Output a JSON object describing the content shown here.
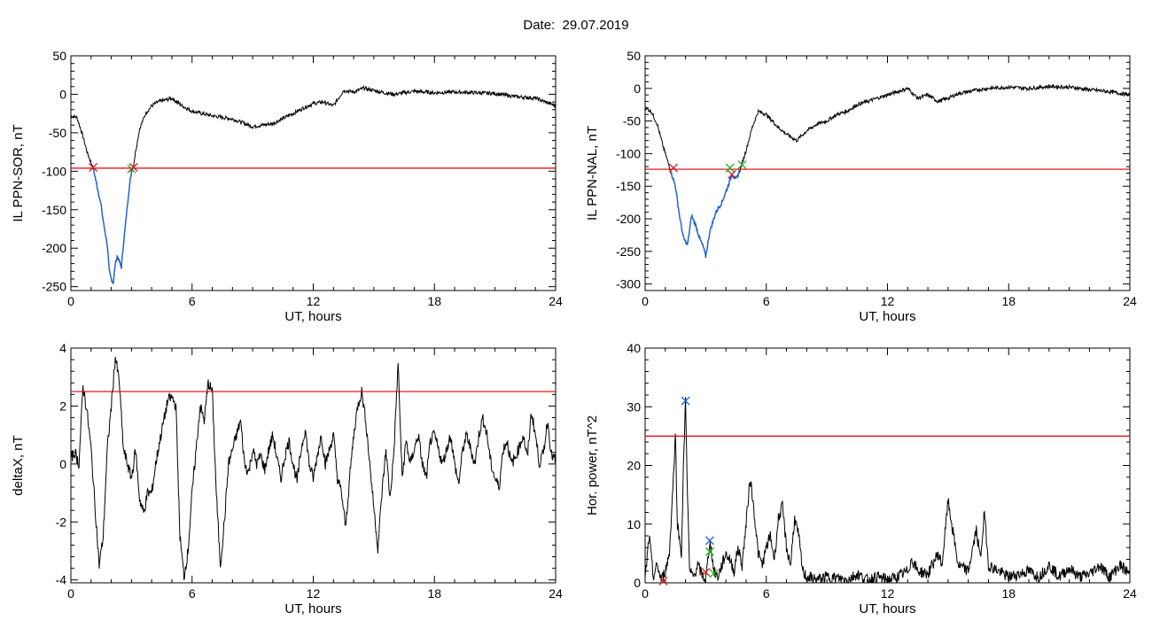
{
  "header": {
    "date_text": "Date:  29.07.2019"
  },
  "colors": {
    "trace": "#000000",
    "threshold": "#e00000",
    "highlight": "#1a5fd6",
    "marker_red": "#d02020",
    "marker_green": "#20b020",
    "marker_blue": "#1a5fd6"
  },
  "chart_data": [
    {
      "id": "panel-ppn-sor",
      "type": "line",
      "xlabel": "UT, hours",
      "ylabel": "IL PPN-SOR, nT",
      "xlim": [
        0,
        24
      ],
      "ylim": [
        -255,
        50
      ],
      "xticks": [
        0,
        6,
        12,
        18,
        24
      ],
      "yticks": [
        50,
        0,
        -50,
        -100,
        -150,
        -200,
        -250
      ],
      "threshold": -96,
      "series": [
        {
          "role": "trace",
          "x": [
            0,
            0.3,
            0.6,
            0.8,
            1.1,
            1.3,
            1.5,
            1.6,
            1.8,
            1.9,
            2.0,
            2.1,
            2.2,
            2.3,
            2.5,
            2.6,
            2.7,
            2.85,
            3.0,
            3.1,
            3.2,
            3.4,
            3.7,
            4.0,
            4.3,
            4.6,
            5.0,
            5.5,
            6.0,
            7.0,
            8.0,
            9.0,
            10.0,
            11.0,
            11.5,
            12.0,
            12.5,
            13.0,
            13.5,
            14.0,
            14.5,
            15.0,
            15.5,
            16.0,
            16.5,
            17.0,
            18.0,
            19.0,
            20.0,
            21.0,
            22.0,
            23.0,
            23.5,
            24.0
          ],
          "y": [
            -28,
            -30,
            -55,
            -75,
            -96,
            -120,
            -145,
            -165,
            -195,
            -230,
            -240,
            -245,
            -220,
            -210,
            -225,
            -195,
            -170,
            -130,
            -100,
            -92,
            -75,
            -45,
            -25,
            -15,
            -10,
            -8,
            -5,
            -15,
            -22,
            -28,
            -32,
            -42,
            -38,
            -25,
            -18,
            -12,
            -10,
            -15,
            5,
            3,
            8,
            5,
            2,
            0,
            2,
            4,
            2,
            3,
            2,
            1,
            -3,
            -5,
            -10,
            -15
          ]
        },
        {
          "role": "highlight",
          "x_from": 1.1,
          "x_to": 3.1
        }
      ],
      "markers": [
        {
          "x": 1.1,
          "y": -95,
          "color": "red"
        },
        {
          "x": 3.0,
          "y": -97,
          "color": "green"
        },
        {
          "x": 3.1,
          "y": -95,
          "color": "red"
        }
      ]
    },
    {
      "id": "panel-ppn-nal",
      "type": "line",
      "xlabel": "UT, hours",
      "ylabel": "IL PPN-NAL, nT",
      "xlim": [
        0,
        24
      ],
      "ylim": [
        -310,
        50
      ],
      "xticks": [
        0,
        6,
        12,
        18,
        24
      ],
      "yticks": [
        50,
        0,
        -50,
        -100,
        -150,
        -200,
        -250,
        -300
      ],
      "threshold": -124,
      "series": [
        {
          "role": "trace",
          "x": [
            0,
            0.3,
            0.6,
            0.9,
            1.2,
            1.5,
            1.7,
            1.9,
            2.1,
            2.3,
            2.5,
            2.7,
            2.9,
            3.0,
            3.2,
            3.5,
            3.8,
            4.1,
            4.3,
            4.5,
            4.7,
            5.0,
            5.3,
            5.6,
            6.0,
            6.3,
            6.6,
            7.0,
            7.5,
            8.0,
            8.5,
            9.0,
            9.5,
            10.0,
            10.5,
            11.0,
            11.5,
            12.0,
            12.5,
            13.0,
            13.5,
            14.0,
            14.5,
            15.0,
            15.5,
            16.0,
            16.5,
            17.0,
            18.0,
            19.0,
            20.0,
            21.0,
            22.0,
            23.0,
            24.0
          ],
          "y": [
            -30,
            -35,
            -55,
            -90,
            -120,
            -150,
            -195,
            -230,
            -240,
            -195,
            -210,
            -230,
            -245,
            -258,
            -220,
            -190,
            -175,
            -150,
            -132,
            -140,
            -125,
            -95,
            -60,
            -35,
            -40,
            -50,
            -60,
            -70,
            -80,
            -65,
            -55,
            -50,
            -40,
            -35,
            -25,
            -20,
            -15,
            -10,
            -5,
            0,
            -15,
            -10,
            -20,
            -15,
            -8,
            -5,
            -2,
            0,
            2,
            0,
            3,
            2,
            -2,
            -5,
            -10
          ]
        },
        {
          "role": "highlight",
          "x_from": 1.3,
          "x_to": 4.7
        }
      ],
      "markers": [
        {
          "x": 1.4,
          "y": -122,
          "color": "red"
        },
        {
          "x": 4.2,
          "y": -122,
          "color": "green"
        },
        {
          "x": 4.3,
          "y": -132,
          "color": "red"
        },
        {
          "x": 4.8,
          "y": -117,
          "color": "green"
        }
      ]
    },
    {
      "id": "panel-deltax",
      "type": "line",
      "xlabel": "UT, hours",
      "ylabel": "deltaX, nT",
      "xlim": [
        0,
        24
      ],
      "ylim": [
        -4.1,
        4
      ],
      "xticks": [
        0,
        6,
        12,
        18,
        24
      ],
      "yticks": [
        4,
        2,
        0,
        -2,
        -4
      ],
      "threshold": 2.5,
      "series": [
        {
          "role": "trace",
          "x": [
            0,
            0.2,
            0.4,
            0.6,
            0.8,
            1.0,
            1.2,
            1.4,
            1.6,
            1.8,
            2.0,
            2.2,
            2.4,
            2.6,
            2.8,
            3.0,
            3.2,
            3.4,
            3.6,
            3.8,
            4.0,
            4.2,
            4.4,
            4.6,
            4.8,
            5.0,
            5.2,
            5.4,
            5.6,
            5.8,
            6.0,
            6.2,
            6.4,
            6.6,
            6.8,
            7.0,
            7.2,
            7.4,
            7.6,
            7.8,
            8.0,
            8.2,
            8.4,
            8.6,
            8.8,
            9.0,
            9.2,
            9.4,
            9.6,
            9.8,
            10.0,
            10.2,
            10.4,
            10.6,
            10.8,
            11.0,
            11.2,
            11.4,
            11.6,
            11.8,
            12.0,
            12.2,
            12.4,
            12.6,
            12.8,
            13.0,
            13.2,
            13.4,
            13.6,
            13.8,
            14.0,
            14.2,
            14.4,
            14.6,
            14.8,
            15.0,
            15.2,
            15.4,
            15.6,
            15.8,
            16.0,
            16.2,
            16.4,
            16.6,
            16.8,
            17.0,
            17.2,
            17.4,
            17.6,
            17.8,
            18.0,
            18.2,
            18.4,
            18.6,
            18.8,
            19.0,
            19.2,
            19.4,
            19.6,
            19.8,
            20.0,
            20.2,
            20.4,
            20.6,
            20.8,
            21.0,
            21.2,
            21.4,
            21.6,
            21.8,
            22.0,
            22.2,
            22.4,
            22.6,
            22.8,
            23.0,
            23.2,
            23.4,
            23.6,
            23.8,
            24.0
          ],
          "y": [
            0.2,
            0.4,
            0.0,
            2.7,
            1.8,
            0.5,
            -1.5,
            -3.5,
            -2.5,
            0.5,
            2.0,
            3.7,
            2.8,
            0.5,
            0.0,
            -0.5,
            0.5,
            -1.2,
            -1.7,
            -1.0,
            -1.0,
            0.0,
            0.8,
            1.5,
            2.2,
            2.3,
            2.0,
            -2.5,
            -3.9,
            -3.0,
            -1.0,
            0.5,
            2.0,
            1.5,
            2.8,
            2.5,
            -1.0,
            -3.5,
            -2.0,
            0.0,
            0.5,
            1.0,
            1.5,
            0.0,
            -0.3,
            0.5,
            0.0,
            0.3,
            -0.2,
            0.5,
            1.0,
            0.2,
            -0.5,
            0.3,
            0.8,
            0.0,
            -0.6,
            0.5,
            1.2,
            0.0,
            -0.5,
            0.3,
            1.0,
            0.0,
            0.5,
            1.0,
            -0.5,
            -1.0,
            -2.2,
            -0.5,
            1.0,
            2.0,
            2.5,
            1.5,
            0.0,
            -1.5,
            -2.9,
            -1.0,
            0.5,
            -1.2,
            0.5,
            3.5,
            -0.5,
            0.8,
            0.0,
            0.5,
            1.0,
            0.0,
            -0.5,
            0.8,
            1.0,
            0.5,
            0.0,
            0.5,
            1.0,
            0.0,
            -0.7,
            0.5,
            1.0,
            0.5,
            0.0,
            1.0,
            1.6,
            1.0,
            0.0,
            -0.5,
            -0.8,
            0.5,
            0.8,
            0.0,
            0.2,
            0.6,
            1.0,
            0.2,
            1.8,
            1.0,
            0.0,
            0.4,
            1.5,
            0.3,
            0.1
          ]
        }
      ],
      "markers": []
    },
    {
      "id": "panel-hor-power",
      "type": "line",
      "xlabel": "UT, hours",
      "ylabel": "Hor. power, nT^2",
      "xlim": [
        0,
        24
      ],
      "ylim": [
        0,
        40
      ],
      "xticks": [
        0,
        6,
        12,
        18,
        24
      ],
      "yticks": [
        40,
        30,
        20,
        10,
        0
      ],
      "threshold": 25,
      "series": [
        {
          "role": "trace",
          "x": [
            0,
            0.2,
            0.4,
            0.6,
            0.8,
            1.0,
            1.2,
            1.4,
            1.5,
            1.6,
            1.8,
            1.9,
            2.0,
            2.1,
            2.2,
            2.4,
            2.6,
            2.8,
            3.0,
            3.2,
            3.3,
            3.4,
            3.6,
            3.8,
            4.0,
            4.2,
            4.4,
            4.6,
            4.8,
            5.0,
            5.2,
            5.4,
            5.6,
            5.8,
            6.0,
            6.2,
            6.4,
            6.6,
            6.8,
            7.0,
            7.2,
            7.4,
            7.6,
            7.8,
            8.0,
            8.5,
            9.0,
            9.5,
            10.0,
            10.5,
            11.0,
            11.5,
            12.0,
            12.5,
            13.0,
            13.2,
            13.5,
            14.0,
            14.5,
            14.7,
            15.0,
            15.5,
            16.0,
            16.4,
            16.6,
            16.8,
            17.0,
            17.5,
            18.0,
            18.5,
            19.0,
            19.5,
            20.0,
            20.5,
            21.0,
            21.5,
            22.0,
            22.5,
            23.0,
            23.5,
            24.0
          ],
          "y": [
            0.5,
            8.0,
            1.0,
            3.0,
            0.5,
            2.0,
            5.0,
            18.0,
            25.0,
            10.0,
            5.0,
            20.0,
            31.0,
            15.0,
            2.0,
            1.0,
            3.0,
            1.5,
            0.5,
            7.0,
            5.0,
            2.0,
            1.0,
            3.0,
            5.0,
            4.0,
            2.0,
            6.0,
            3.0,
            10.0,
            18.0,
            12.0,
            5.0,
            3.0,
            6.0,
            8.0,
            4.0,
            11.0,
            13.0,
            6.0,
            3.0,
            11.0,
            8.0,
            2.0,
            1.0,
            0.5,
            1.0,
            0.8,
            0.5,
            1.5,
            0.5,
            1.0,
            0.5,
            1.0,
            2.0,
            4.0,
            2.0,
            1.5,
            5.0,
            3.0,
            14.0,
            3.0,
            2.0,
            9.0,
            4.0,
            12.0,
            3.0,
            2.0,
            1.0,
            1.5,
            2.0,
            1.0,
            3.0,
            1.0,
            2.5,
            1.0,
            1.5,
            3.0,
            1.0,
            3.0,
            1.5
          ]
        }
      ],
      "markers": [
        {
          "x": 0.9,
          "y": 0.3,
          "color": "red"
        },
        {
          "x": 2.0,
          "y": 31,
          "color": "blue"
        },
        {
          "x": 3.0,
          "y": 1.8,
          "color": "red"
        },
        {
          "x": 3.2,
          "y": 7.2,
          "color": "blue"
        },
        {
          "x": 3.2,
          "y": 5.3,
          "color": "green"
        },
        {
          "x": 3.4,
          "y": 1.6,
          "color": "green"
        }
      ]
    }
  ]
}
